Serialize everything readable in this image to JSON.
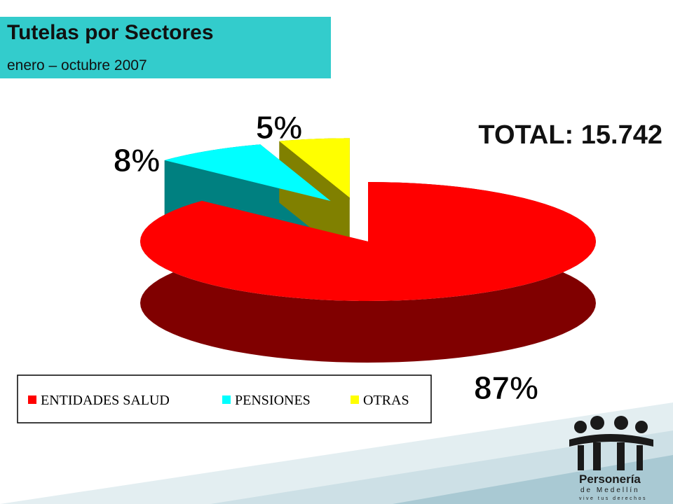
{
  "chart_data": {
    "type": "pie3d",
    "title": "Tutelas por Sectores",
    "subtitle": "enero – octubre 2007",
    "annotation": "TOTAL: 15.742",
    "categories": [
      "ENTIDADES SALUD",
      "PENSIONES",
      "OTRAS"
    ],
    "values": [
      87,
      8,
      5
    ],
    "value_labels": [
      "87%",
      "8%",
      "5%"
    ],
    "colors": [
      "#ff0000",
      "#00ffff",
      "#ffff00"
    ],
    "side_colors": [
      "#800000",
      "#008080",
      "#808000"
    ]
  },
  "logo": {
    "name": "Personería",
    "city": "de Medellín",
    "slogan": "vive tus derechos"
  }
}
